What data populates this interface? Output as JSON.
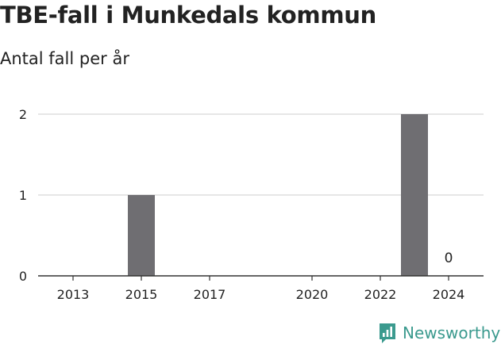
{
  "title": "TBE-fall i Munkedals kommun",
  "subtitle": "Antal fall per år",
  "brand": {
    "name": "Newsworthy",
    "icon": "newsworthy-logo-icon",
    "color": "#3b9a8e"
  },
  "colors": {
    "bar": "#6f6e72",
    "grid": "#dddddd",
    "axis": "#333333",
    "text": "#222222"
  },
  "chart_data": {
    "type": "bar",
    "x": [
      2013,
      2014,
      2015,
      2016,
      2017,
      2018,
      2019,
      2020,
      2021,
      2022,
      2023,
      2024
    ],
    "values": [
      0,
      0,
      1,
      0,
      0,
      0,
      0,
      0,
      0,
      0,
      2,
      0
    ],
    "x_ticks": [
      2013,
      2015,
      2017,
      2020,
      2022,
      2024
    ],
    "y_ticks": [
      0,
      1,
      2
    ],
    "ylim": [
      0,
      2
    ],
    "data_labels": [
      {
        "x": 2024,
        "text": "0"
      }
    ],
    "grid": true,
    "legend": "none"
  }
}
